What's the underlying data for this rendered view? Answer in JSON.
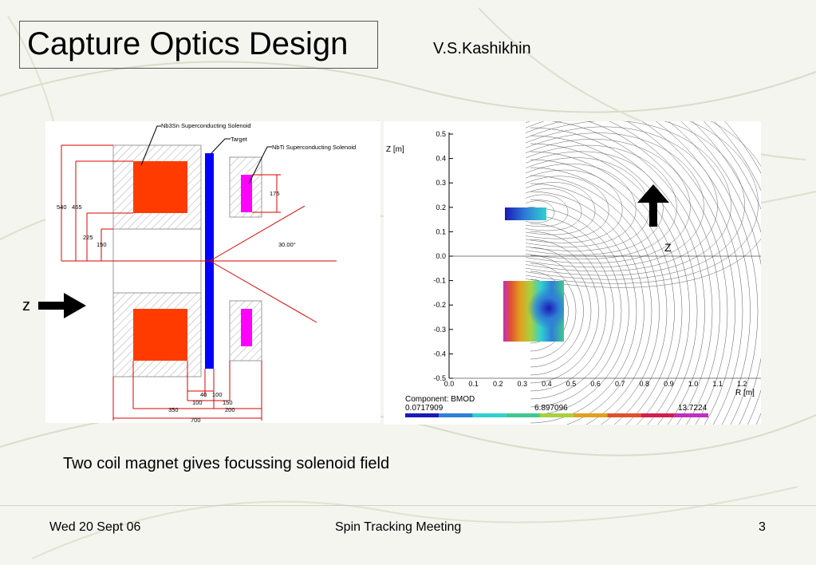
{
  "slide": {
    "title": "Capture Optics Design",
    "author": "V.S.Kashikhin",
    "caption": "Two coil magnet gives focussing solenoid field"
  },
  "footer": {
    "date": "Wed 20 Sept 06",
    "meeting": "Spin Tracking Meeting",
    "page": "3"
  },
  "left_diagram": {
    "labels": {
      "nb3sn": "Nb3Sn Superconducting Solenoid",
      "target": "Target",
      "nbti": "NbTi Superconducting Solenoid",
      "angle": "30.00°",
      "z_axis": "z"
    },
    "dimensions": {
      "d540": "540",
      "d465": "465",
      "d225": "225",
      "d150": "150",
      "d175": "175",
      "d40": "40",
      "d100a": "100",
      "d100b": "100",
      "d150b": "150",
      "d350": "350",
      "d200": "200",
      "d700": "700"
    },
    "colors": {
      "nb3sn_coil": "#ff3b00",
      "nbti_coil": "#ff00ff",
      "target": "#0000ff"
    }
  },
  "right_plot": {
    "z_label": "Z [m]",
    "r_label": "R [m]",
    "z_ticks": [
      "0.5",
      "0.4",
      "0.3",
      "0.2",
      "0.1",
      "0.0",
      "-0.1",
      "-0.2",
      "-0.3",
      "-0.4",
      "-0.5"
    ],
    "r_ticks": [
      "0.0",
      "0.1",
      "0.2",
      "0.3",
      "0.4",
      "0.5",
      "0.6",
      "0.7",
      "0.8",
      "0.9",
      "1.0",
      "1.1",
      "1.2"
    ],
    "z_arrow_label": "Z",
    "component_label": "Component: BMOD",
    "scale_min": "0.0717909",
    "scale_mid": "6.897096",
    "scale_max": "13.7224",
    "scale_colors": [
      "#1a1ab4",
      "#2e7fd6",
      "#30d0d0",
      "#40c890",
      "#a8d040",
      "#e0a020",
      "#e05030",
      "#d02050",
      "#c030c0"
    ]
  }
}
